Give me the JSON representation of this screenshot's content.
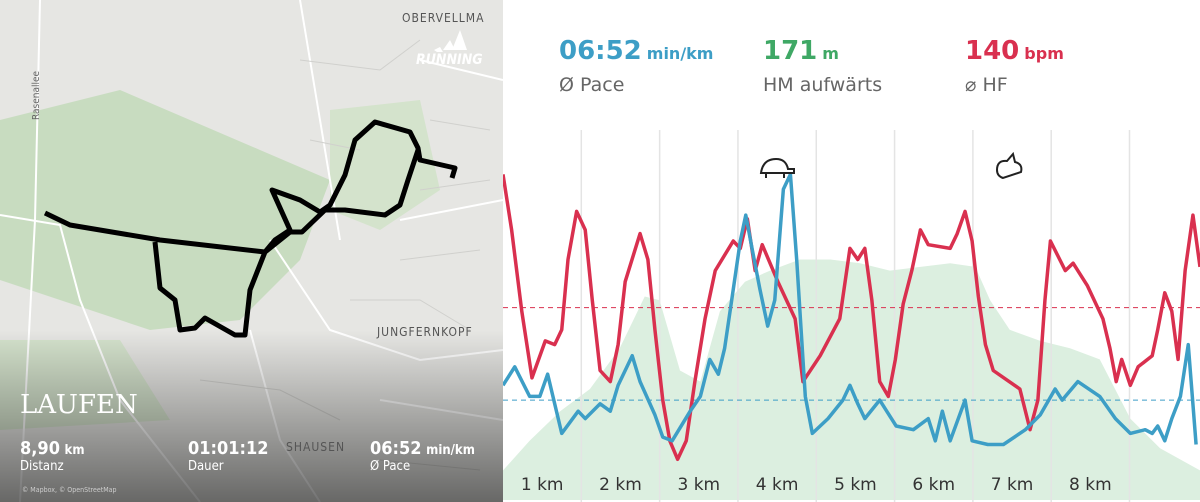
{
  "map": {
    "brand": "RUNNING",
    "places": [
      "OBERVELLMA",
      "Rasenallee",
      "JUNGFERNKOPF",
      "SHAUSEN"
    ],
    "title": "LAUFEN",
    "stats": [
      {
        "value": "8,90",
        "unit": "km",
        "label": "Distanz"
      },
      {
        "value": "01:01:12",
        "label": "Dauer"
      },
      {
        "value": "06:52",
        "unit": "min/km",
        "label": "Ø Pace"
      }
    ],
    "attribution": "© Mapbox, © OpenStreetMap"
  },
  "summary": [
    {
      "value": "06:52",
      "unit": "min/km",
      "label": "Ø Pace",
      "color": "#3d9ec6"
    },
    {
      "value": "171",
      "unit": "m",
      "label": "HM aufwärts",
      "color": "#3fa865"
    },
    {
      "value": "140",
      "unit": "bpm",
      "label": "⌀ HF",
      "color": "#d9304f"
    }
  ],
  "chart_data": {
    "type": "line",
    "categories": [
      "1 km",
      "2 km",
      "3 km",
      "4 km",
      "5 km",
      "6 km",
      "7 km",
      "8 km"
    ],
    "xlim": [
      0,
      8.9
    ],
    "ylim": [
      0,
      100
    ],
    "xticks": [
      1,
      2,
      3,
      4,
      5,
      6,
      7,
      8
    ],
    "grid": true,
    "series": [
      {
        "kind": "area",
        "color": "#dcefe0",
        "x": [
          0,
          0.34,
          0.73,
          1.11,
          1.49,
          1.81,
          2.0,
          2.26,
          2.52,
          2.77,
          3.09,
          3.41,
          3.79,
          4.18,
          4.56,
          4.94,
          5.33,
          5.71,
          6.03,
          6.22,
          6.47,
          6.86,
          7.24,
          7.62,
          8.01,
          8.39,
          8.9
        ],
        "values": [
          8,
          16,
          24,
          30,
          41,
          55,
          54,
          35,
          32,
          51,
          59,
          62,
          65,
          65,
          64,
          62,
          63,
          64,
          63,
          54,
          46,
          43,
          41,
          38,
          22,
          14,
          8
        ]
      },
      {
        "color": "#d9304f",
        "average": 52,
        "x": [
          0,
          0.11,
          0.24,
          0.37,
          0.54,
          0.66,
          0.75,
          0.83,
          0.94,
          1.05,
          1.14,
          1.24,
          1.37,
          1.47,
          1.56,
          1.75,
          1.85,
          1.94,
          2.04,
          2.13,
          2.23,
          2.34,
          2.45,
          2.58,
          2.71,
          2.94,
          3.03,
          3.12,
          3.22,
          3.31,
          3.51,
          3.73,
          3.83,
          4.05,
          4.3,
          4.43,
          4.53,
          4.62,
          4.71,
          4.81,
          4.92,
          5.01,
          5.11,
          5.22,
          5.33,
          5.43,
          5.71,
          5.8,
          5.9,
          5.99,
          6.07,
          6.16,
          6.26,
          6.6,
          6.73,
          6.83,
          6.92,
          6.99,
          7.18,
          7.28,
          7.46,
          7.66,
          7.75,
          7.83,
          7.9,
          8.01,
          8.11,
          8.29,
          8.36,
          8.45,
          8.54,
          8.62,
          8.71,
          8.81,
          8.9
        ],
        "values": [
          88,
          73,
          51,
          33,
          43,
          42,
          46,
          65,
          78,
          73,
          54,
          35,
          32,
          42,
          59,
          72,
          65,
          46,
          27,
          16,
          11,
          16,
          32,
          49,
          62,
          70,
          68,
          76,
          62,
          69,
          59,
          49,
          32,
          39,
          49,
          68,
          65,
          68,
          54,
          32,
          28,
          38,
          53,
          62,
          73,
          69,
          68,
          72,
          78,
          70,
          55,
          42,
          35,
          30,
          19,
          27,
          54,
          70,
          62,
          64,
          58,
          49,
          41,
          32,
          38,
          31,
          36,
          39,
          46,
          56,
          51,
          38,
          62,
          77,
          63
        ]
      },
      {
        "color": "#3d9ec6",
        "average": 27,
        "x": [
          0,
          0.15,
          0.34,
          0.47,
          0.57,
          0.75,
          0.96,
          1.05,
          1.24,
          1.37,
          1.47,
          1.65,
          1.75,
          1.94,
          2.04,
          2.16,
          2.39,
          2.52,
          2.64,
          2.75,
          2.83,
          2.92,
          3.03,
          3.1,
          3.18,
          3.28,
          3.38,
          3.47,
          3.58,
          3.67,
          3.75,
          3.86,
          3.95,
          4.15,
          4.34,
          4.43,
          4.53,
          4.62,
          4.81,
          5.02,
          5.24,
          5.43,
          5.52,
          5.61,
          5.71,
          5.9,
          5.99,
          6.19,
          6.39,
          6.67,
          6.86,
          7.05,
          7.14,
          7.34,
          7.62,
          7.82,
          8.01,
          8.2,
          8.29,
          8.36,
          8.45,
          8.54,
          8.65,
          8.75,
          8.85
        ],
        "values": [
          31,
          36,
          28,
          28,
          34,
          18,
          24,
          22,
          26,
          24,
          31,
          39,
          32,
          23,
          17,
          16,
          24,
          28,
          38,
          34,
          41,
          54,
          70,
          77,
          68,
          57,
          47,
          54,
          84,
          88,
          65,
          28,
          18,
          22,
          27,
          31,
          26,
          22,
          27,
          20,
          19,
          22,
          16,
          24,
          16,
          27,
          16,
          15,
          15,
          19,
          23,
          30,
          27,
          32,
          28,
          22,
          18,
          19,
          18,
          20,
          16,
          22,
          28,
          42,
          15
        ]
      }
    ]
  }
}
